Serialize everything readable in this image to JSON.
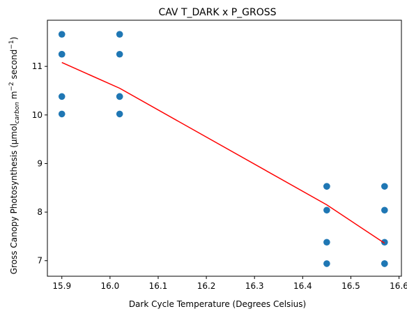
{
  "chart_data": {
    "type": "scatter",
    "title": "CAV T_DARK x P_GROSS",
    "xlabel": "Dark Cycle Temperature (Degrees Celsius)",
    "ylabel": {
      "prefix": "Gross Canopy Photosynthesis (μmol",
      "subscript": "carbon",
      "middle": " m",
      "exp1": "−2",
      "middle2": " second",
      "exp2": "−1",
      "suffix": ")"
    },
    "xlim": [
      15.87,
      16.605
    ],
    "ylim": [
      6.68,
      11.95
    ],
    "xticks": [
      15.9,
      16.0,
      16.1,
      16.2,
      16.3,
      16.4,
      16.5,
      16.6
    ],
    "xtick_labels": [
      "15.9",
      "16.0",
      "16.1",
      "16.2",
      "16.3",
      "16.4",
      "16.5",
      "16.6"
    ],
    "yticks": [
      7,
      8,
      9,
      10,
      11
    ],
    "ytick_labels": [
      "7",
      "8",
      "9",
      "10",
      "11"
    ],
    "grid": false,
    "series": [
      {
        "type": "scatter",
        "color": "#1f77b4",
        "points": [
          [
            15.9,
            11.66
          ],
          [
            15.9,
            11.25
          ],
          [
            15.9,
            11.25
          ],
          [
            15.9,
            10.38
          ],
          [
            15.9,
            10.02
          ],
          [
            16.02,
            11.66
          ],
          [
            16.02,
            11.25
          ],
          [
            16.02,
            10.38
          ],
          [
            16.02,
            10.38
          ],
          [
            16.02,
            10.02
          ],
          [
            16.45,
            8.53
          ],
          [
            16.45,
            8.53
          ],
          [
            16.45,
            8.04
          ],
          [
            16.45,
            7.38
          ],
          [
            16.45,
            6.94
          ],
          [
            16.57,
            8.53
          ],
          [
            16.57,
            8.04
          ],
          [
            16.57,
            7.38
          ],
          [
            16.57,
            6.94
          ],
          [
            16.57,
            6.94
          ]
        ]
      },
      {
        "type": "line",
        "color": "#ff0000",
        "points": [
          [
            15.9,
            11.08
          ],
          [
            16.02,
            10.55
          ],
          [
            16.45,
            8.15
          ],
          [
            16.57,
            7.36
          ]
        ]
      }
    ]
  }
}
